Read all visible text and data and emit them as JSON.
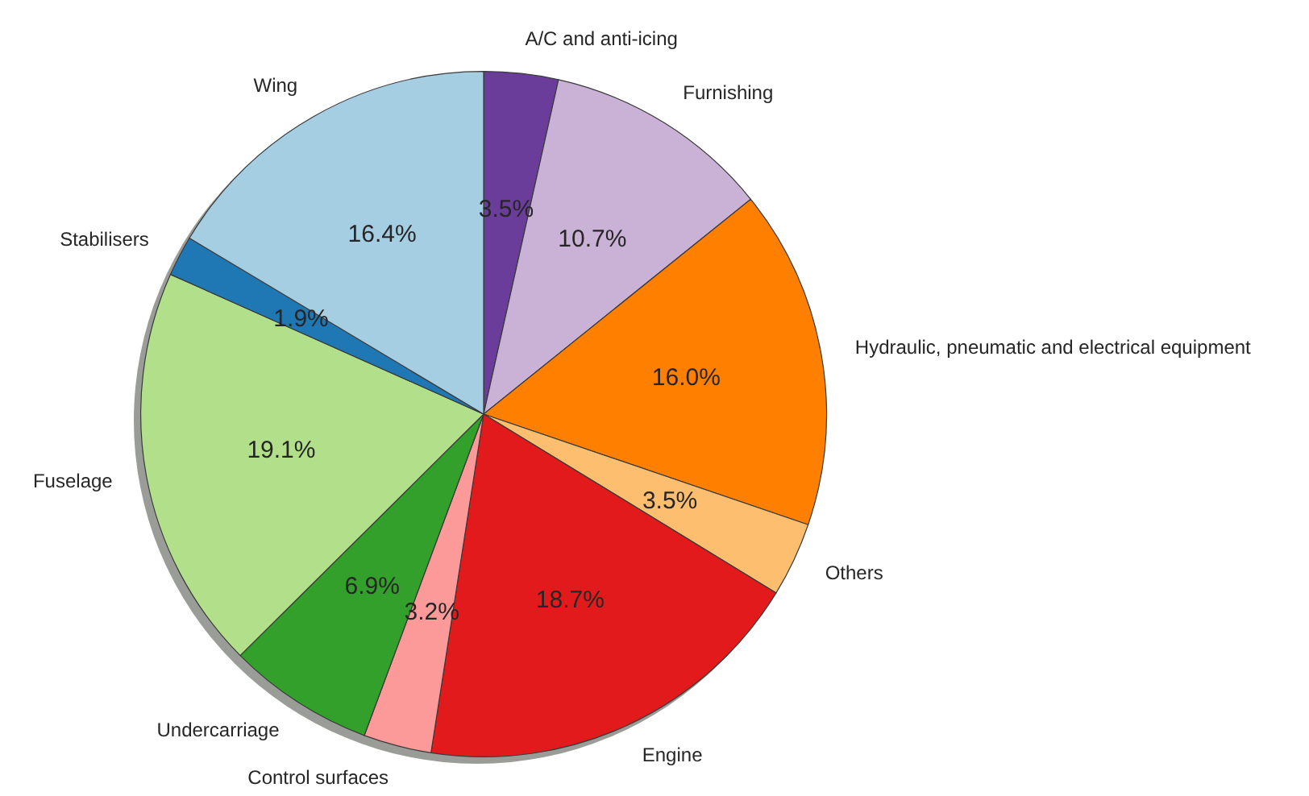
{
  "chart_data": {
    "type": "pie",
    "categories": [
      "A/C and anti-icing",
      "Furnishing",
      "Hydraulic, pneumatic and electrical equipment",
      "Others",
      "Engine",
      "Control surfaces",
      "Undercarriage",
      "Fuselage",
      "Stabilisers",
      "Wing"
    ],
    "values": [
      3.5,
      10.7,
      16.0,
      3.5,
      18.7,
      3.2,
      6.9,
      19.1,
      1.9,
      16.4
    ],
    "colors": [
      "#6a3d9a",
      "#cab2d6",
      "#ff7f00",
      "#fdbf6f",
      "#e31a1c",
      "#fb9a99",
      "#33a02c",
      "#b2df8a",
      "#1f78b4",
      "#a6cee3"
    ],
    "value_labels": [
      "3.5%",
      "10.7%",
      "16.0%",
      "3.5%",
      "18.7%",
      "3.2%",
      "6.9%",
      "19.1%",
      "1.9%",
      "16.4%"
    ]
  }
}
